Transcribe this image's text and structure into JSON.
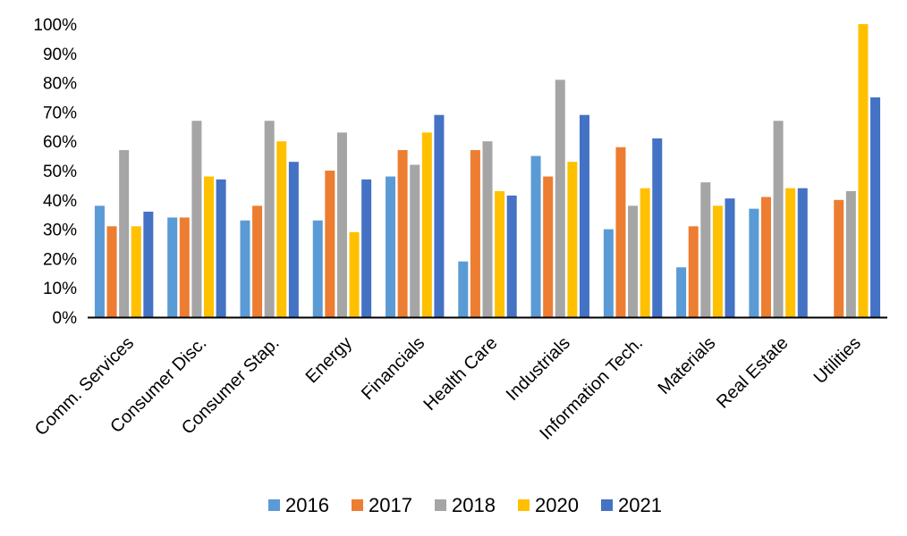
{
  "chart_data": {
    "type": "bar",
    "title": "",
    "xlabel": "",
    "ylabel": "",
    "ylim": [
      0,
      100
    ],
    "y_ticks": [
      "0%",
      "10%",
      "20%",
      "30%",
      "40%",
      "50%",
      "60%",
      "70%",
      "80%",
      "90%",
      "100%"
    ],
    "grid": false,
    "legend_position": "bottom",
    "categories": [
      "Comm. Services",
      "Consumer Disc.",
      "Consumer Stap.",
      "Energy",
      "Financials",
      "Health Care",
      "Industrials",
      "Information Tech.",
      "Materials",
      "Real Estate",
      "Utilities"
    ],
    "series": [
      {
        "name": "2016",
        "color": "#5B9BD5",
        "values": [
          38,
          34,
          33,
          33,
          48,
          19,
          55,
          30,
          17,
          37,
          null
        ]
      },
      {
        "name": "2017",
        "color": "#ED7D31",
        "values": [
          31,
          34,
          38,
          50,
          57,
          57,
          48,
          58,
          31,
          41,
          40
        ]
      },
      {
        "name": "2018",
        "color": "#A5A5A5",
        "values": [
          57,
          67,
          67,
          63,
          52,
          60,
          81,
          38,
          46,
          67,
          43
        ]
      },
      {
        "name": "2020",
        "color": "#FFC000",
        "values": [
          31,
          48,
          60,
          29,
          63,
          43,
          53,
          44,
          38,
          44,
          100
        ]
      },
      {
        "name": "2021",
        "color": "#4472C4",
        "values": [
          36,
          47,
          53,
          47,
          69,
          41.5,
          69,
          61,
          40.5,
          44,
          75
        ]
      }
    ]
  }
}
